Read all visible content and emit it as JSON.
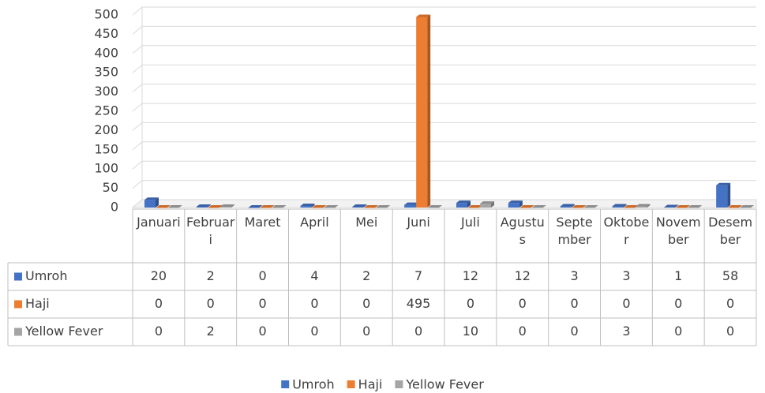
{
  "chart_data": {
    "type": "bar",
    "categories": [
      "Januari",
      "Februari",
      "Maret",
      "April",
      "Mei",
      "Juni",
      "Juli",
      "Agustus",
      "September",
      "Oktober",
      "November",
      "Desember"
    ],
    "series": [
      {
        "name": "Umroh",
        "color": "#4472c4",
        "values": [
          20,
          2,
          0,
          4,
          2,
          7,
          12,
          12,
          3,
          3,
          1,
          58
        ]
      },
      {
        "name": "Haji",
        "color": "#ed7d31",
        "values": [
          0,
          0,
          0,
          0,
          0,
          495,
          0,
          0,
          0,
          0,
          0,
          0
        ]
      },
      {
        "name": "Yellow Fever",
        "color": "#a5a5a5",
        "values": [
          0,
          2,
          0,
          0,
          0,
          0,
          10,
          0,
          0,
          3,
          0,
          0
        ]
      }
    ],
    "ylim": [
      0,
      500
    ],
    "yticks": [
      0,
      50,
      100,
      150,
      200,
      250,
      300,
      350,
      400,
      450,
      500
    ],
    "grid": true,
    "legend": "bottom"
  }
}
